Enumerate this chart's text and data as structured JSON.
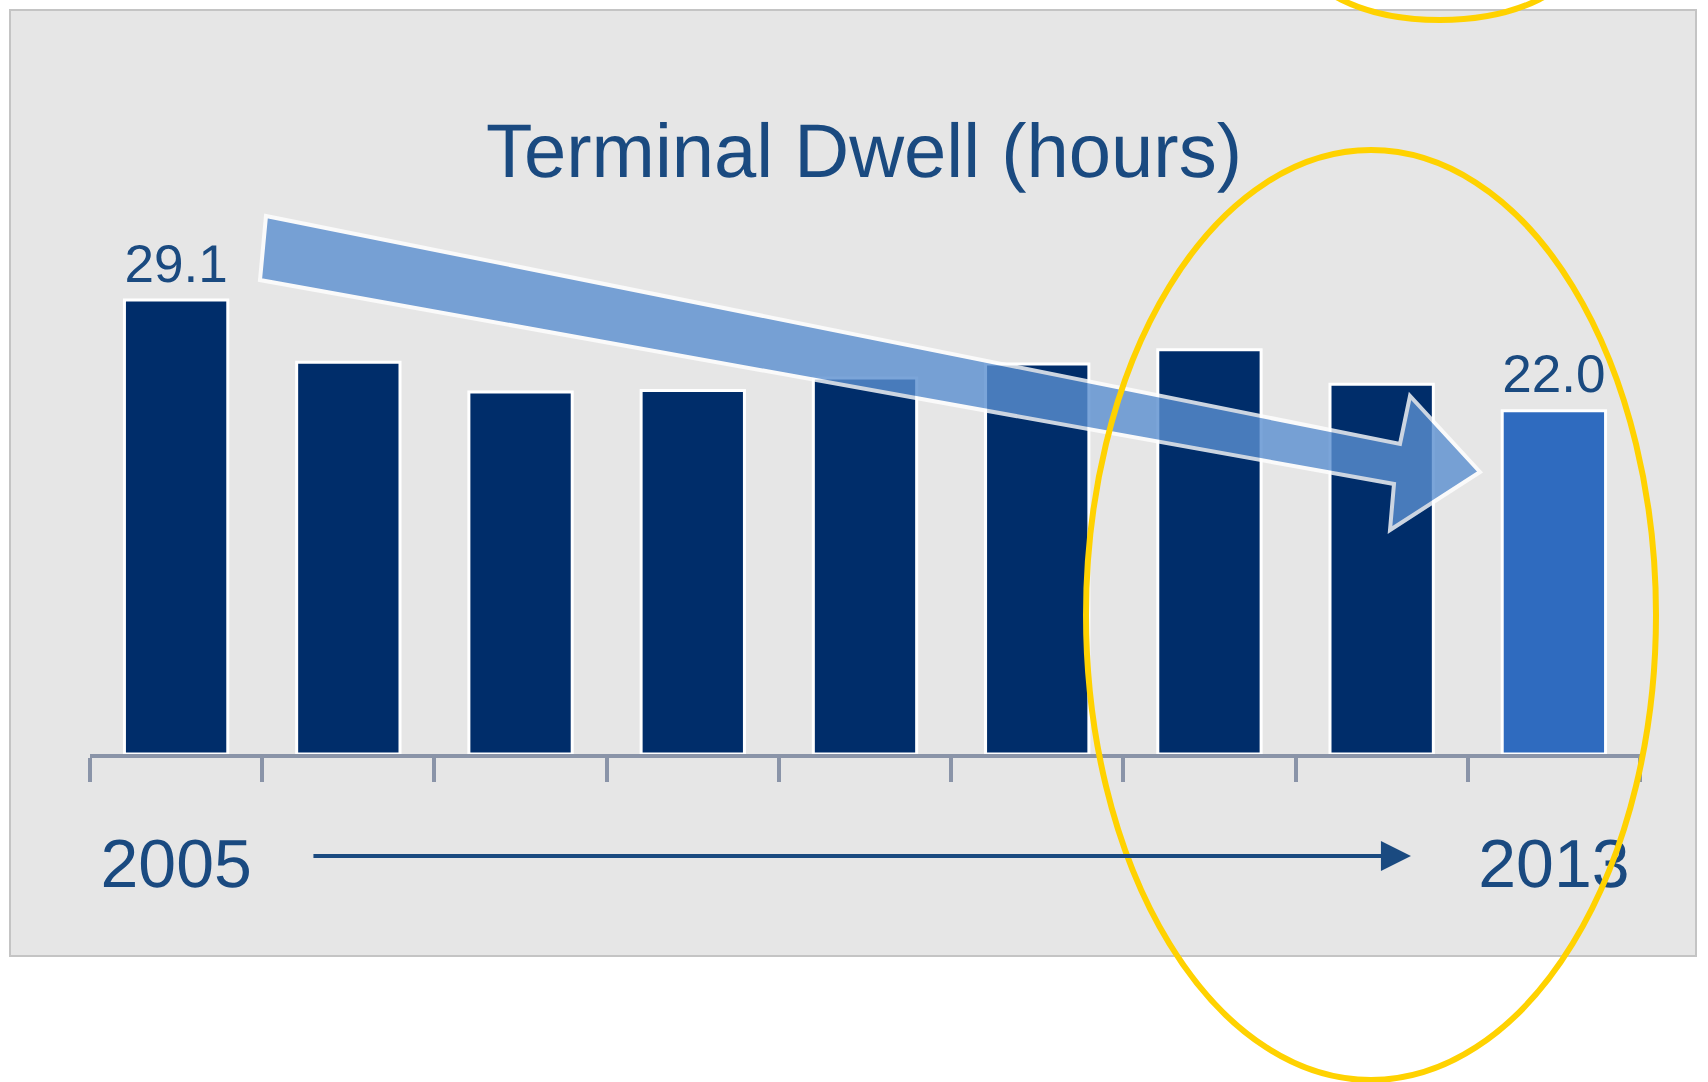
{
  "chart_data": {
    "type": "bar",
    "title": "Terminal Dwell (hours)",
    "categories": [
      "2005",
      null,
      null,
      null,
      null,
      null,
      null,
      null,
      "2013"
    ],
    "values": [
      29.1,
      25.1,
      23.2,
      23.3,
      24.1,
      25.0,
      25.9,
      23.7,
      22.0
    ],
    "colors": [
      "#002d6a",
      "#002d6a",
      "#002d6a",
      "#002d6a",
      "#002d6a",
      "#002d6a",
      "#002d6a",
      "#002d6a",
      "#2f6bbf"
    ],
    "value_labels": [
      "29.1",
      null,
      null,
      null,
      null,
      null,
      null,
      null,
      "22.0"
    ],
    "tick_labels": "x"
  }
}
